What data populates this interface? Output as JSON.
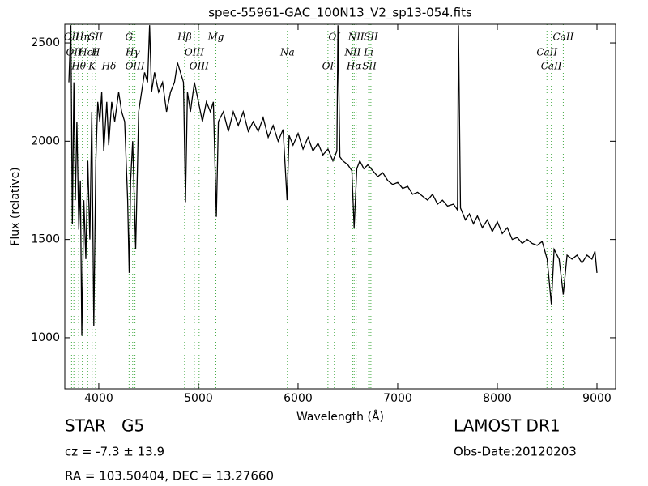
{
  "chart_data": {
    "type": "line",
    "title": "spec-55961-GAC_100N13_V2_sp13-054.fits",
    "x_label": "Wavelength (Å)",
    "y_label": "Flux (relative)",
    "xlim": [
      3659,
      9187
    ],
    "ylim": [
      740,
      2595
    ],
    "xticks": [
      4000,
      5000,
      6000,
      7000,
      8000,
      9000
    ],
    "yticks": [
      1000,
      1500,
      2000,
      2500
    ],
    "color": "#000000",
    "line_color": "#44aa44",
    "x": [
      3700,
      3720,
      3735,
      3750,
      3765,
      3780,
      3800,
      3815,
      3830,
      3850,
      3870,
      3890,
      3910,
      3930,
      3950,
      3970,
      3990,
      4010,
      4030,
      4050,
      4080,
      4100,
      4130,
      4160,
      4200,
      4230,
      4260,
      4290,
      4305,
      4320,
      4340,
      4370,
      4400,
      4430,
      4460,
      4490,
      4510,
      4530,
      4560,
      4600,
      4640,
      4680,
      4720,
      4760,
      4790,
      4820,
      4850,
      4870,
      4890,
      4920,
      4960,
      5000,
      5040,
      5080,
      5120,
      5150,
      5180,
      5200,
      5250,
      5300,
      5350,
      5400,
      5450,
      5500,
      5550,
      5600,
      5650,
      5700,
      5750,
      5800,
      5850,
      5890,
      5910,
      5950,
      6000,
      6050,
      6100,
      6150,
      6200,
      6250,
      6300,
      6350,
      6390,
      6400,
      6420,
      6450,
      6500,
      6540,
      6563,
      6590,
      6620,
      6660,
      6700,
      6750,
      6800,
      6850,
      6900,
      6950,
      7000,
      7050,
      7100,
      7150,
      7200,
      7250,
      7300,
      7350,
      7400,
      7450,
      7500,
      7560,
      7600,
      7610,
      7630,
      7680,
      7720,
      7760,
      7800,
      7850,
      7900,
      7950,
      8000,
      8050,
      8100,
      8150,
      8200,
      8250,
      8300,
      8350,
      8400,
      8450,
      8500,
      8542,
      8570,
      8620,
      8662,
      8700,
      8750,
      8800,
      8850,
      8900,
      8950,
      8980,
      9000
    ],
    "values": [
      2300,
      2590,
      1580,
      2300,
      1700,
      2100,
      1550,
      1800,
      1010,
      1700,
      1400,
      1900,
      1500,
      2150,
      1060,
      1900,
      2200,
      2100,
      2250,
      1950,
      2200,
      1980,
      2200,
      2100,
      2250,
      2150,
      2100,
      1700,
      1330,
      1800,
      2000,
      1450,
      2150,
      2250,
      2350,
      2300,
      2590,
      2250,
      2350,
      2250,
      2300,
      2150,
      2250,
      2300,
      2400,
      2350,
      2300,
      1690,
      2250,
      2150,
      2300,
      2200,
      2100,
      2200,
      2150,
      2200,
      1615,
      2100,
      2150,
      2050,
      2150,
      2080,
      2150,
      2050,
      2100,
      2050,
      2120,
      2020,
      2080,
      2000,
      2060,
      1700,
      2030,
      1980,
      2040,
      1960,
      2020,
      1950,
      1990,
      1930,
      1960,
      1900,
      1950,
      2590,
      1920,
      1900,
      1880,
      1850,
      1560,
      1860,
      1900,
      1860,
      1880,
      1850,
      1820,
      1840,
      1800,
      1780,
      1790,
      1760,
      1770,
      1730,
      1740,
      1720,
      1700,
      1730,
      1680,
      1700,
      1670,
      1680,
      1650,
      2590,
      1660,
      1600,
      1630,
      1580,
      1620,
      1560,
      1600,
      1540,
      1590,
      1530,
      1560,
      1500,
      1510,
      1480,
      1500,
      1480,
      1470,
      1490,
      1400,
      1170,
      1450,
      1400,
      1220,
      1420,
      1400,
      1420,
      1380,
      1420,
      1400,
      1440,
      1330
    ],
    "spectral_lines": [
      {
        "wavelength": 3727,
        "label": "OII"
      },
      {
        "wavelength": 3750,
        "label": "OII"
      },
      {
        "wavelength": 3798,
        "label": "Hθ"
      },
      {
        "wavelength": 3835,
        "label": "Hη"
      },
      {
        "wavelength": 3889,
        "label": "HeI"
      },
      {
        "wavelength": 3933,
        "label": "K"
      },
      {
        "wavelength": 3968,
        "label": "SII"
      },
      {
        "wavelength": 3970,
        "label": "H"
      },
      {
        "wavelength": 4102,
        "label": "Hδ"
      },
      {
        "wavelength": 4304,
        "label": "G"
      },
      {
        "wavelength": 4340,
        "label": "Hγ"
      },
      {
        "wavelength": 4363,
        "label": "OIII"
      },
      {
        "wavelength": 4861,
        "label": "Hβ"
      },
      {
        "wavelength": 4959,
        "label": "OIII"
      },
      {
        "wavelength": 5007,
        "label": "OIII"
      },
      {
        "wavelength": 5175,
        "label": "Mg"
      },
      {
        "wavelength": 5893,
        "label": "Na"
      },
      {
        "wavelength": 6300,
        "label": "OI"
      },
      {
        "wavelength": 6364,
        "label": "OI"
      },
      {
        "wavelength": 6548,
        "label": "NII"
      },
      {
        "wavelength": 6563,
        "label": "Hα"
      },
      {
        "wavelength": 6583,
        "label": "NII"
      },
      {
        "wavelength": 6708,
        "label": "Li"
      },
      {
        "wavelength": 6716,
        "label": "SII"
      },
      {
        "wavelength": 6731,
        "label": "SII"
      },
      {
        "wavelength": 8498,
        "label": "CaII"
      },
      {
        "wavelength": 8542,
        "label": "CaII"
      },
      {
        "wavelength": 8662,
        "label": "CaII"
      }
    ],
    "object_class": "STAR   G5",
    "redshift": "cz = -7.3 ± 13.9",
    "coordinates": "RA = 103.50404, DEC = 13.27660",
    "release": "LAMOST DR1",
    "obs_date": "Obs-Date:20120203"
  }
}
